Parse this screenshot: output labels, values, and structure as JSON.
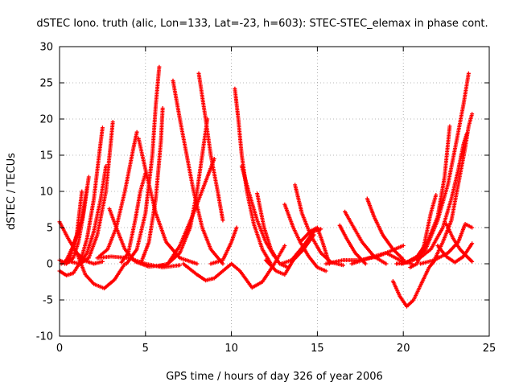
{
  "chart_data": {
    "type": "scatter",
    "title": "dSTEC Iono. truth (alic, Lon=133, Lat=-23, h=603): STEC-STEC_elemax in phase cont.",
    "xlabel": "GPS time / hours of day 326 of year 2006",
    "ylabel": "dSTEC  / TECUs",
    "xlim": [
      0,
      25
    ],
    "ylim": [
      -10,
      30
    ],
    "xticks": [
      0,
      5,
      10,
      15,
      20,
      25
    ],
    "yticks": [
      -10,
      -5,
      0,
      5,
      10,
      15,
      20,
      25,
      30
    ],
    "grid": true,
    "marker": "+",
    "series_color": "#ff0000",
    "tracks": [
      [
        [
          0.0,
          5.8
        ],
        [
          0.5,
          3.5
        ],
        [
          1.0,
          1.5
        ],
        [
          1.5,
          0.4
        ],
        [
          2.0,
          0.0
        ],
        [
          2.5,
          0.3
        ]
      ],
      [
        [
          0.0,
          -1.0
        ],
        [
          0.4,
          -1.6
        ],
        [
          0.8,
          -1.3
        ],
        [
          1.2,
          0.2
        ],
        [
          1.6,
          3.5
        ],
        [
          2.0,
          9.0
        ],
        [
          2.3,
          15.0
        ],
        [
          2.5,
          18.8
        ]
      ],
      [
        [
          0.0,
          0.5
        ],
        [
          0.4,
          0.0
        ],
        [
          0.8,
          0.8
        ],
        [
          1.1,
          3.0
        ],
        [
          1.4,
          7.0
        ],
        [
          1.7,
          12.0
        ]
      ],
      [
        [
          0.1,
          0.0
        ],
        [
          0.6,
          0.8
        ],
        [
          1.0,
          4.0
        ],
        [
          1.3,
          10.0
        ]
      ],
      [
        [
          0.3,
          0.0
        ],
        [
          0.8,
          2.5
        ],
        [
          1.3,
          6.0
        ],
        [
          1.6,
          10.5
        ]
      ],
      [
        [
          0.6,
          0.3
        ],
        [
          1.2,
          0.0
        ],
        [
          1.6,
          1.5
        ],
        [
          2.0,
          4.5
        ],
        [
          2.4,
          9.0
        ],
        [
          2.7,
          13.5
        ]
      ],
      [
        [
          1.2,
          0.0
        ],
        [
          1.7,
          0.8
        ],
        [
          2.2,
          4.0
        ],
        [
          2.7,
          10.0
        ],
        [
          3.1,
          19.6
        ]
      ],
      [
        [
          1.0,
          1.5
        ],
        [
          1.5,
          -1.5
        ],
        [
          2.0,
          -2.8
        ],
        [
          2.6,
          -3.4
        ],
        [
          3.2,
          -2.2
        ],
        [
          3.8,
          0.0
        ]
      ],
      [
        [
          2.9,
          7.6
        ],
        [
          3.3,
          5.0
        ],
        [
          3.8,
          2.0
        ],
        [
          4.4,
          0.3
        ],
        [
          5.2,
          -0.4
        ],
        [
          6.0,
          -0.2
        ]
      ],
      [
        [
          2.3,
          1.0
        ],
        [
          2.8,
          2.0
        ],
        [
          3.3,
          5.0
        ],
        [
          3.8,
          10.0
        ],
        [
          4.3,
          16.0
        ],
        [
          4.5,
          18.2
        ]
      ],
      [
        [
          2.2,
          0.8
        ],
        [
          3.0,
          1.0
        ],
        [
          4.0,
          0.8
        ],
        [
          5.0,
          0.0
        ],
        [
          6.0,
          -0.5
        ],
        [
          7.0,
          -0.2
        ]
      ],
      [
        [
          3.6,
          0.2
        ],
        [
          4.0,
          1.5
        ],
        [
          4.4,
          6.0
        ],
        [
          4.7,
          10.0
        ],
        [
          5.0,
          12.5
        ]
      ],
      [
        [
          4.6,
          17.3
        ],
        [
          5.0,
          13.0
        ],
        [
          5.6,
          7.0
        ],
        [
          6.2,
          3.0
        ],
        [
          7.0,
          0.8
        ],
        [
          8.0,
          0.0
        ]
      ],
      [
        [
          3.9,
          0.0
        ],
        [
          4.5,
          2.0
        ],
        [
          5.0,
          7.0
        ],
        [
          5.4,
          15.0
        ],
        [
          5.6,
          22.0
        ],
        [
          5.8,
          27.2
        ]
      ],
      [
        [
          4.8,
          0.5
        ],
        [
          5.2,
          3.0
        ],
        [
          5.6,
          9.0
        ],
        [
          5.9,
          17.0
        ],
        [
          6.0,
          21.5
        ]
      ],
      [
        [
          6.6,
          25.3
        ],
        [
          7.0,
          20.0
        ],
        [
          7.4,
          15.0
        ],
        [
          7.8,
          10.0
        ],
        [
          8.3,
          5.0
        ],
        [
          8.8,
          2.0
        ],
        [
          9.5,
          0.0
        ]
      ],
      [
        [
          8.1,
          26.3
        ],
        [
          8.5,
          20.0
        ],
        [
          8.8,
          15.0
        ],
        [
          9.2,
          10.0
        ],
        [
          9.5,
          6.0
        ]
      ],
      [
        [
          5.8,
          -0.3
        ],
        [
          6.3,
          0.0
        ],
        [
          7.0,
          1.5
        ],
        [
          7.6,
          5.0
        ],
        [
          8.0,
          10.0
        ],
        [
          8.3,
          15.0
        ],
        [
          8.6,
          20.0
        ]
      ],
      [
        [
          6.3,
          0.0
        ],
        [
          7.0,
          2.5
        ],
        [
          7.8,
          7.0
        ],
        [
          8.6,
          12.0
        ],
        [
          9.0,
          14.5
        ]
      ],
      [
        [
          7.2,
          0.0
        ],
        [
          8.0,
          -1.5
        ],
        [
          8.5,
          -2.3
        ],
        [
          9.0,
          -2.0
        ],
        [
          9.5,
          -1.0
        ],
        [
          10.0,
          0.0
        ]
      ],
      [
        [
          8.8,
          0.0
        ],
        [
          9.5,
          0.5
        ],
        [
          10.0,
          3.0
        ],
        [
          10.3,
          5.0
        ]
      ],
      [
        [
          10.2,
          24.2
        ],
        [
          10.4,
          20.0
        ],
        [
          10.6,
          15.0
        ],
        [
          10.9,
          10.0
        ],
        [
          11.3,
          5.5
        ],
        [
          11.8,
          2.0
        ],
        [
          12.3,
          0.0
        ]
      ],
      [
        [
          10.6,
          13.5
        ],
        [
          11.0,
          10.0
        ],
        [
          11.5,
          6.0
        ],
        [
          12.0,
          3.0
        ],
        [
          12.5,
          1.0
        ]
      ],
      [
        [
          11.5,
          9.7
        ],
        [
          11.9,
          5.0
        ],
        [
          12.3,
          2.0
        ],
        [
          12.8,
          0.0
        ],
        [
          13.3,
          -0.5
        ]
      ],
      [
        [
          10.0,
          0.0
        ],
        [
          10.5,
          -1.0
        ],
        [
          11.2,
          -3.3
        ],
        [
          11.8,
          -2.5
        ],
        [
          12.5,
          0.0
        ],
        [
          13.1,
          2.5
        ]
      ],
      [
        [
          12.0,
          0.5
        ],
        [
          12.6,
          -1.0
        ],
        [
          13.1,
          -1.5
        ],
        [
          13.6,
          0.5
        ],
        [
          14.2,
          2.0
        ],
        [
          14.8,
          4.0
        ]
      ],
      [
        [
          13.1,
          8.2
        ],
        [
          13.6,
          5.0
        ],
        [
          14.0,
          3.0
        ],
        [
          14.5,
          1.0
        ],
        [
          15.0,
          -0.5
        ],
        [
          15.5,
          -1.0
        ]
      ],
      [
        [
          13.7,
          10.9
        ],
        [
          14.1,
          7.0
        ],
        [
          14.6,
          4.0
        ],
        [
          15.2,
          1.5
        ],
        [
          15.8,
          0.2
        ],
        [
          16.5,
          -0.2
        ]
      ],
      [
        [
          12.9,
          0.0
        ],
        [
          13.5,
          0.5
        ],
        [
          14.2,
          2.5
        ],
        [
          14.8,
          4.5
        ],
        [
          15.2,
          4.8
        ]
      ],
      [
        [
          14.0,
          3.0
        ],
        [
          14.6,
          4.5
        ],
        [
          15.0,
          5.0
        ],
        [
          15.3,
          3.0
        ],
        [
          15.7,
          0.0
        ]
      ],
      [
        [
          16.3,
          5.3
        ],
        [
          16.7,
          3.5
        ],
        [
          17.2,
          1.5
        ],
        [
          17.8,
          0.0
        ]
      ],
      [
        [
          16.6,
          7.2
        ],
        [
          17.0,
          5.5
        ],
        [
          17.6,
          3.0
        ],
        [
          18.3,
          1.0
        ],
        [
          19.0,
          0.0
        ]
      ],
      [
        [
          17.9,
          9.0
        ],
        [
          18.3,
          6.5
        ],
        [
          18.8,
          4.0
        ],
        [
          19.4,
          2.0
        ],
        [
          20.0,
          0.6
        ]
      ],
      [
        [
          15.5,
          0.0
        ],
        [
          16.5,
          0.5
        ],
        [
          17.5,
          0.5
        ],
        [
          18.5,
          1.0
        ],
        [
          19.5,
          2.0
        ],
        [
          20.0,
          2.5
        ]
      ],
      [
        [
          17.0,
          0.0
        ],
        [
          18.0,
          0.8
        ],
        [
          19.0,
          1.5
        ],
        [
          19.8,
          0.5
        ],
        [
          20.5,
          0.0
        ]
      ],
      [
        [
          19.4,
          -2.4
        ],
        [
          19.8,
          -4.5
        ],
        [
          20.2,
          -5.9
        ],
        [
          20.6,
          -5.0
        ],
        [
          21.0,
          -3.0
        ],
        [
          21.5,
          -0.5
        ],
        [
          22.0,
          1.0
        ]
      ],
      [
        [
          20.4,
          -0.5
        ],
        [
          20.8,
          0.0
        ],
        [
          21.2,
          2.5
        ],
        [
          21.6,
          7.0
        ],
        [
          21.9,
          9.5
        ]
      ],
      [
        [
          19.6,
          0.0
        ],
        [
          20.2,
          0.2
        ],
        [
          20.8,
          1.0
        ],
        [
          21.4,
          3.0
        ],
        [
          22.0,
          6.5
        ],
        [
          22.4,
          12.0
        ],
        [
          22.7,
          19.0
        ]
      ],
      [
        [
          19.9,
          0.0
        ],
        [
          20.6,
          0.5
        ],
        [
          21.3,
          2.0
        ],
        [
          22.0,
          6.0
        ],
        [
          22.6,
          11.0
        ],
        [
          23.1,
          17.0
        ],
        [
          23.5,
          22.0
        ],
        [
          23.8,
          26.3
        ]
      ],
      [
        [
          20.8,
          0.5
        ],
        [
          21.6,
          2.0
        ],
        [
          22.3,
          5.0
        ],
        [
          22.8,
          9.0
        ],
        [
          23.2,
          13.0
        ],
        [
          23.5,
          16.5
        ],
        [
          23.7,
          18.0
        ]
      ],
      [
        [
          21.7,
          0.0
        ],
        [
          22.3,
          3.0
        ],
        [
          22.8,
          6.0
        ],
        [
          23.2,
          11.0
        ],
        [
          23.6,
          16.0
        ],
        [
          23.8,
          19.0
        ],
        [
          24.0,
          20.7
        ]
      ],
      [
        [
          22.5,
          5.5
        ],
        [
          22.9,
          3.5
        ],
        [
          23.3,
          2.0
        ],
        [
          23.7,
          1.0
        ],
        [
          24.0,
          0.3
        ]
      ],
      [
        [
          22.0,
          2.5
        ],
        [
          22.5,
          1.0
        ],
        [
          23.0,
          0.2
        ],
        [
          23.5,
          1.0
        ],
        [
          24.0,
          2.8
        ]
      ],
      [
        [
          21.0,
          0.0
        ],
        [
          21.8,
          0.5
        ],
        [
          22.6,
          1.5
        ],
        [
          23.2,
          3.0
        ],
        [
          23.6,
          5.5
        ],
        [
          24.0,
          5.0
        ]
      ]
    ]
  }
}
